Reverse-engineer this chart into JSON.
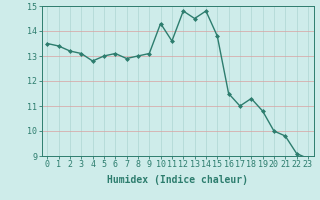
{
  "x": [
    0,
    1,
    2,
    3,
    4,
    5,
    6,
    7,
    8,
    9,
    10,
    11,
    12,
    13,
    14,
    15,
    16,
    17,
    18,
    19,
    20,
    21,
    22,
    23
  ],
  "y": [
    13.5,
    13.4,
    13.2,
    13.1,
    12.8,
    13.0,
    13.1,
    12.9,
    13.0,
    13.1,
    14.3,
    13.6,
    14.8,
    14.5,
    14.8,
    13.8,
    11.5,
    11.0,
    11.3,
    10.8,
    10.0,
    9.8,
    9.1,
    8.9
  ],
  "line_color": "#2d7d6e",
  "marker": "D",
  "marker_size": 2.0,
  "line_width": 1.0,
  "background_color": "#ceecea",
  "grid_color": "#add6d2",
  "xlabel": "Humidex (Indice chaleur)",
  "xlabel_fontsize": 7,
  "tick_fontsize": 6,
  "ylim": [
    9,
    15
  ],
  "xlim": [
    -0.5,
    23.5
  ],
  "yticks": [
    9,
    10,
    11,
    12,
    13,
    14,
    15
  ],
  "xticks": [
    0,
    1,
    2,
    3,
    4,
    5,
    6,
    7,
    8,
    9,
    10,
    11,
    12,
    13,
    14,
    15,
    16,
    17,
    18,
    19,
    20,
    21,
    22,
    23
  ]
}
